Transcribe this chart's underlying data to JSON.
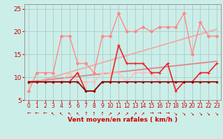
{
  "xlabel": "Vent moyen/en rafales ( km/h )",
  "xlim": [
    -0.5,
    23.5
  ],
  "ylim": [
    5,
    26
  ],
  "yticks": [
    5,
    10,
    15,
    20,
    25
  ],
  "xticks": [
    0,
    1,
    2,
    3,
    4,
    5,
    6,
    7,
    8,
    9,
    10,
    11,
    12,
    13,
    14,
    15,
    16,
    17,
    18,
    19,
    20,
    21,
    22,
    23
  ],
  "bg_color": "#cceee8",
  "grid_color": "#aacccc",
  "series": [
    {
      "name": "trend_lower",
      "x": [
        0,
        23
      ],
      "y": [
        9.0,
        13.5
      ],
      "color": "#dd8888",
      "lw": 1.3,
      "marker": null,
      "ms": 0,
      "zorder": 2
    },
    {
      "name": "trend_upper",
      "x": [
        0,
        23
      ],
      "y": [
        8.5,
        20.5
      ],
      "color": "#eeaaaa",
      "lw": 1.3,
      "marker": null,
      "ms": 0,
      "zorder": 2
    },
    {
      "name": "line_pink_upper",
      "x": [
        0,
        1,
        2,
        3,
        4,
        5,
        6,
        7,
        8,
        9,
        10,
        11,
        12,
        13,
        14,
        15,
        16,
        17,
        18,
        19,
        20,
        21,
        22,
        23
      ],
      "y": [
        7,
        11,
        11,
        11,
        19,
        19,
        13,
        13,
        11,
        19,
        19,
        24,
        20,
        20,
        21,
        20,
        21,
        21,
        21,
        24,
        15,
        22,
        19,
        19
      ],
      "color": "#ff8888",
      "lw": 1.0,
      "marker": "D",
      "ms": 2.2,
      "zorder": 4
    },
    {
      "name": "line_pink_lower",
      "x": [
        0,
        1,
        2,
        3,
        4,
        5,
        6,
        7,
        8,
        9,
        10,
        11,
        12,
        13,
        14,
        15,
        16,
        17,
        18,
        19,
        20,
        21,
        22,
        23
      ],
      "y": [
        9,
        9,
        9,
        9,
        9,
        11,
        9,
        9,
        9,
        11,
        11,
        11,
        9,
        11,
        11,
        11,
        9,
        9,
        9,
        9,
        9,
        9,
        9,
        9
      ],
      "color": "#ffbbbb",
      "lw": 1.0,
      "marker": "D",
      "ms": 2.0,
      "zorder": 3
    },
    {
      "name": "line_medium_red",
      "x": [
        0,
        1,
        2,
        3,
        4,
        5,
        6,
        7,
        8,
        9,
        10,
        11,
        12,
        13,
        14,
        15,
        16,
        17,
        18,
        19,
        20,
        21,
        22,
        23
      ],
      "y": [
        9,
        9,
        9,
        9,
        9,
        9,
        11,
        7,
        7,
        9,
        9,
        17,
        13,
        13,
        13,
        11,
        11,
        13,
        7,
        9,
        9,
        11,
        11,
        13
      ],
      "color": "#ee2222",
      "lw": 1.2,
      "marker": "+",
      "ms": 3.5,
      "zorder": 5
    },
    {
      "name": "line_dark_red",
      "x": [
        0,
        1,
        2,
        3,
        4,
        5,
        6,
        7,
        8,
        9,
        10,
        11,
        12,
        13,
        14,
        15,
        16,
        17,
        18,
        19,
        20,
        21,
        22,
        23
      ],
      "y": [
        9,
        9,
        9,
        9,
        9,
        9,
        9,
        7,
        7,
        9,
        9,
        9,
        9,
        9,
        9,
        9,
        9,
        9,
        9,
        9,
        9,
        9,
        9,
        9
      ],
      "color": "#880000",
      "lw": 1.2,
      "marker": "s",
      "ms": 2.0,
      "zorder": 6
    }
  ],
  "wind_arrows": [
    {
      "x": 0,
      "sym": "←"
    },
    {
      "x": 1,
      "sym": "←"
    },
    {
      "x": 2,
      "sym": "←"
    },
    {
      "x": 3,
      "sym": "↖"
    },
    {
      "x": 4,
      "sym": "↖"
    },
    {
      "x": 5,
      "sym": "↖"
    },
    {
      "x": 6,
      "sym": "↖"
    },
    {
      "x": 7,
      "sym": "↑"
    },
    {
      "x": 8,
      "sym": "↑"
    },
    {
      "x": 9,
      "sym": "↑"
    },
    {
      "x": 10,
      "sym": "↗"
    },
    {
      "x": 11,
      "sym": "↗"
    },
    {
      "x": 12,
      "sym": "↗"
    },
    {
      "x": 13,
      "sym": "↗"
    },
    {
      "x": 14,
      "sym": "↗"
    },
    {
      "x": 15,
      "sym": "→"
    },
    {
      "x": 16,
      "sym": "→"
    },
    {
      "x": 17,
      "sym": "→"
    },
    {
      "x": 18,
      "sym": "↘"
    },
    {
      "x": 19,
      "sym": "↘"
    },
    {
      "x": 20,
      "sym": "↘"
    },
    {
      "x": 21,
      "sym": "↘"
    },
    {
      "x": 22,
      "sym": "↘"
    },
    {
      "x": 23,
      "sym": "↘"
    }
  ]
}
